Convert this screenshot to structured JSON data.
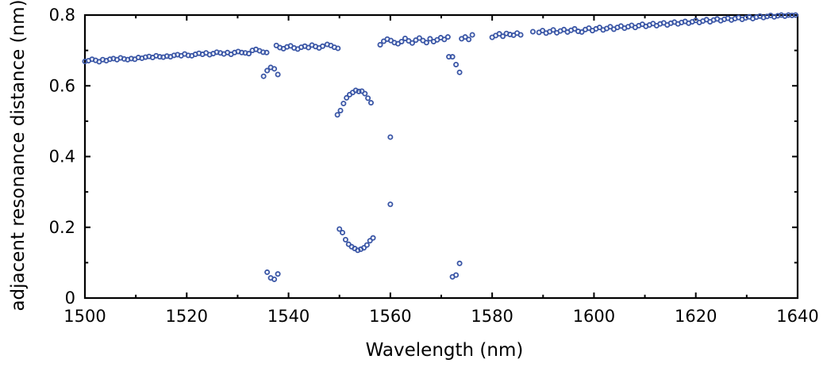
{
  "chart_data": {
    "type": "scatter",
    "xlabel": "Wavelength (nm)",
    "ylabel": "adjacent resonance distance (nm)",
    "xlim": [
      1500,
      1640
    ],
    "ylim": [
      0,
      0.8
    ],
    "xticks": [
      1500,
      1520,
      1540,
      1560,
      1580,
      1600,
      1620,
      1640
    ],
    "yticks": [
      0,
      0.2,
      0.4,
      0.6,
      0.8
    ],
    "xtick_labels": [
      "1500",
      "1520",
      "1540",
      "1560",
      "1580",
      "1600",
      "1620",
      "1640"
    ],
    "ytick_labels": [
      "0",
      "0.2",
      "0.4",
      "0.6",
      "0.8"
    ],
    "grid": false,
    "legend": "none",
    "marker_color": "#3a56a6",
    "series": [
      {
        "points": [
          [
            1500.0,
            0.669
          ],
          [
            1500.7,
            0.671
          ],
          [
            1501.4,
            0.675
          ],
          [
            1502.1,
            0.672
          ],
          [
            1502.8,
            0.668
          ],
          [
            1503.5,
            0.674
          ],
          [
            1504.2,
            0.671
          ],
          [
            1504.9,
            0.675
          ],
          [
            1505.6,
            0.677
          ],
          [
            1506.3,
            0.674
          ],
          [
            1507.0,
            0.679
          ],
          [
            1507.7,
            0.676
          ],
          [
            1508.4,
            0.674
          ],
          [
            1509.1,
            0.677
          ],
          [
            1509.8,
            0.675
          ],
          [
            1510.5,
            0.68
          ],
          [
            1511.2,
            0.678
          ],
          [
            1511.9,
            0.681
          ],
          [
            1512.6,
            0.683
          ],
          [
            1513.3,
            0.68
          ],
          [
            1514.0,
            0.685
          ],
          [
            1514.7,
            0.682
          ],
          [
            1515.4,
            0.681
          ],
          [
            1516.1,
            0.684
          ],
          [
            1516.8,
            0.682
          ],
          [
            1517.5,
            0.686
          ],
          [
            1518.2,
            0.688
          ],
          [
            1518.9,
            0.685
          ],
          [
            1519.6,
            0.69
          ],
          [
            1520.3,
            0.686
          ],
          [
            1521.0,
            0.685
          ],
          [
            1521.7,
            0.689
          ],
          [
            1522.4,
            0.692
          ],
          [
            1523.1,
            0.689
          ],
          [
            1523.8,
            0.693
          ],
          [
            1524.5,
            0.688
          ],
          [
            1525.2,
            0.691
          ],
          [
            1525.9,
            0.695
          ],
          [
            1526.6,
            0.693
          ],
          [
            1527.3,
            0.69
          ],
          [
            1528.0,
            0.694
          ],
          [
            1528.7,
            0.689
          ],
          [
            1529.4,
            0.694
          ],
          [
            1530.1,
            0.697
          ],
          [
            1530.8,
            0.694
          ],
          [
            1531.5,
            0.693
          ],
          [
            1532.2,
            0.691
          ],
          [
            1532.9,
            0.7
          ],
          [
            1533.6,
            0.703
          ],
          [
            1534.3,
            0.699
          ],
          [
            1535.0,
            0.695
          ],
          [
            1535.7,
            0.694
          ],
          [
            1547.6,
            0.717
          ],
          [
            1548.3,
            0.714
          ],
          [
            1549.0,
            0.709
          ],
          [
            1549.7,
            0.706
          ],
          [
            1537.6,
            0.714
          ],
          [
            1538.3,
            0.708
          ],
          [
            1539.0,
            0.705
          ],
          [
            1539.7,
            0.71
          ],
          [
            1540.4,
            0.713
          ],
          [
            1541.1,
            0.707
          ],
          [
            1541.8,
            0.704
          ],
          [
            1542.5,
            0.709
          ],
          [
            1543.2,
            0.712
          ],
          [
            1543.9,
            0.708
          ],
          [
            1544.6,
            0.715
          ],
          [
            1545.3,
            0.711
          ],
          [
            1546.0,
            0.707
          ],
          [
            1546.7,
            0.712
          ],
          [
            1558.0,
            0.716
          ],
          [
            1558.7,
            0.726
          ],
          [
            1559.4,
            0.732
          ],
          [
            1560.1,
            0.728
          ],
          [
            1560.8,
            0.722
          ],
          [
            1561.5,
            0.719
          ],
          [
            1562.2,
            0.725
          ],
          [
            1562.9,
            0.734
          ],
          [
            1563.6,
            0.727
          ],
          [
            1564.3,
            0.721
          ],
          [
            1565.0,
            0.729
          ],
          [
            1565.7,
            0.735
          ],
          [
            1566.4,
            0.728
          ],
          [
            1567.1,
            0.722
          ],
          [
            1567.8,
            0.733
          ],
          [
            1568.5,
            0.725
          ],
          [
            1569.2,
            0.73
          ],
          [
            1569.9,
            0.736
          ],
          [
            1570.6,
            0.731
          ],
          [
            1571.3,
            0.738
          ],
          [
            1574.0,
            0.733
          ],
          [
            1574.7,
            0.738
          ],
          [
            1575.4,
            0.731
          ],
          [
            1576.1,
            0.744
          ],
          [
            1580.0,
            0.737
          ],
          [
            1580.7,
            0.742
          ],
          [
            1581.4,
            0.747
          ],
          [
            1582.1,
            0.74
          ],
          [
            1582.8,
            0.748
          ],
          [
            1583.5,
            0.745
          ],
          [
            1584.2,
            0.743
          ],
          [
            1584.9,
            0.749
          ],
          [
            1585.6,
            0.744
          ],
          [
            1588.0,
            0.753
          ],
          [
            1589.2,
            0.751
          ],
          [
            1589.9,
            0.756
          ],
          [
            1590.6,
            0.749
          ],
          [
            1591.3,
            0.753
          ],
          [
            1592.0,
            0.758
          ],
          [
            1592.7,
            0.75
          ],
          [
            1593.4,
            0.755
          ],
          [
            1594.1,
            0.759
          ],
          [
            1594.8,
            0.752
          ],
          [
            1595.5,
            0.757
          ],
          [
            1596.2,
            0.761
          ],
          [
            1596.9,
            0.754
          ],
          [
            1597.6,
            0.752
          ],
          [
            1598.3,
            0.759
          ],
          [
            1599.0,
            0.763
          ],
          [
            1599.7,
            0.756
          ],
          [
            1600.4,
            0.761
          ],
          [
            1601.1,
            0.765
          ],
          [
            1601.8,
            0.758
          ],
          [
            1602.5,
            0.762
          ],
          [
            1603.2,
            0.767
          ],
          [
            1603.9,
            0.76
          ],
          [
            1604.6,
            0.765
          ],
          [
            1605.3,
            0.769
          ],
          [
            1606.0,
            0.763
          ],
          [
            1606.7,
            0.767
          ],
          [
            1607.4,
            0.771
          ],
          [
            1608.1,
            0.765
          ],
          [
            1608.8,
            0.77
          ],
          [
            1609.5,
            0.774
          ],
          [
            1610.2,
            0.768
          ],
          [
            1610.9,
            0.772
          ],
          [
            1611.6,
            0.776
          ],
          [
            1612.3,
            0.77
          ],
          [
            1613.0,
            0.775
          ],
          [
            1613.7,
            0.778
          ],
          [
            1614.4,
            0.772
          ],
          [
            1615.1,
            0.777
          ],
          [
            1615.8,
            0.78
          ],
          [
            1616.5,
            0.775
          ],
          [
            1617.2,
            0.779
          ],
          [
            1617.9,
            0.782
          ],
          [
            1618.6,
            0.777
          ],
          [
            1619.3,
            0.781
          ],
          [
            1620.0,
            0.785
          ],
          [
            1620.7,
            0.779
          ],
          [
            1621.4,
            0.783
          ],
          [
            1622.1,
            0.787
          ],
          [
            1622.8,
            0.781
          ],
          [
            1623.5,
            0.786
          ],
          [
            1624.2,
            0.789
          ],
          [
            1624.9,
            0.784
          ],
          [
            1625.6,
            0.788
          ],
          [
            1626.3,
            0.791
          ],
          [
            1627.0,
            0.786
          ],
          [
            1627.7,
            0.79
          ],
          [
            1628.4,
            0.793
          ],
          [
            1629.1,
            0.788
          ],
          [
            1629.8,
            0.792
          ],
          [
            1630.5,
            0.795
          ],
          [
            1631.2,
            0.79
          ],
          [
            1631.9,
            0.794
          ],
          [
            1632.6,
            0.797
          ],
          [
            1633.3,
            0.793
          ],
          [
            1634.0,
            0.796
          ],
          [
            1634.7,
            0.799
          ],
          [
            1635.4,
            0.795
          ],
          [
            1636.1,
            0.798
          ],
          [
            1636.8,
            0.8
          ],
          [
            1637.5,
            0.797
          ],
          [
            1638.2,
            0.8
          ],
          [
            1638.9,
            0.799
          ],
          [
            1639.6,
            0.8
          ],
          [
            1535.1,
            0.627
          ],
          [
            1535.8,
            0.643
          ],
          [
            1536.5,
            0.652
          ],
          [
            1537.2,
            0.648
          ],
          [
            1537.9,
            0.632
          ],
          [
            1535.8,
            0.073
          ],
          [
            1536.5,
            0.057
          ],
          [
            1537.2,
            0.053
          ],
          [
            1537.9,
            0.068
          ],
          [
            1549.6,
            0.518
          ],
          [
            1550.2,
            0.53
          ],
          [
            1550.8,
            0.55
          ],
          [
            1551.4,
            0.566
          ],
          [
            1552.0,
            0.575
          ],
          [
            1552.6,
            0.581
          ],
          [
            1553.2,
            0.587
          ],
          [
            1553.8,
            0.584
          ],
          [
            1554.4,
            0.585
          ],
          [
            1555.0,
            0.578
          ],
          [
            1555.6,
            0.565
          ],
          [
            1556.2,
            0.552
          ],
          [
            1550.0,
            0.195
          ],
          [
            1550.6,
            0.185
          ],
          [
            1551.2,
            0.165
          ],
          [
            1551.8,
            0.152
          ],
          [
            1552.4,
            0.145
          ],
          [
            1553.0,
            0.14
          ],
          [
            1553.6,
            0.135
          ],
          [
            1554.2,
            0.138
          ],
          [
            1554.8,
            0.142
          ],
          [
            1555.4,
            0.15
          ],
          [
            1556.0,
            0.162
          ],
          [
            1556.6,
            0.17
          ],
          [
            1560.0,
            0.455
          ],
          [
            1560.0,
            0.265
          ],
          [
            1571.5,
            0.682
          ],
          [
            1572.2,
            0.682
          ],
          [
            1572.9,
            0.66
          ],
          [
            1573.6,
            0.638
          ],
          [
            1572.2,
            0.06
          ],
          [
            1572.9,
            0.065
          ],
          [
            1573.6,
            0.098
          ]
        ]
      }
    ]
  }
}
